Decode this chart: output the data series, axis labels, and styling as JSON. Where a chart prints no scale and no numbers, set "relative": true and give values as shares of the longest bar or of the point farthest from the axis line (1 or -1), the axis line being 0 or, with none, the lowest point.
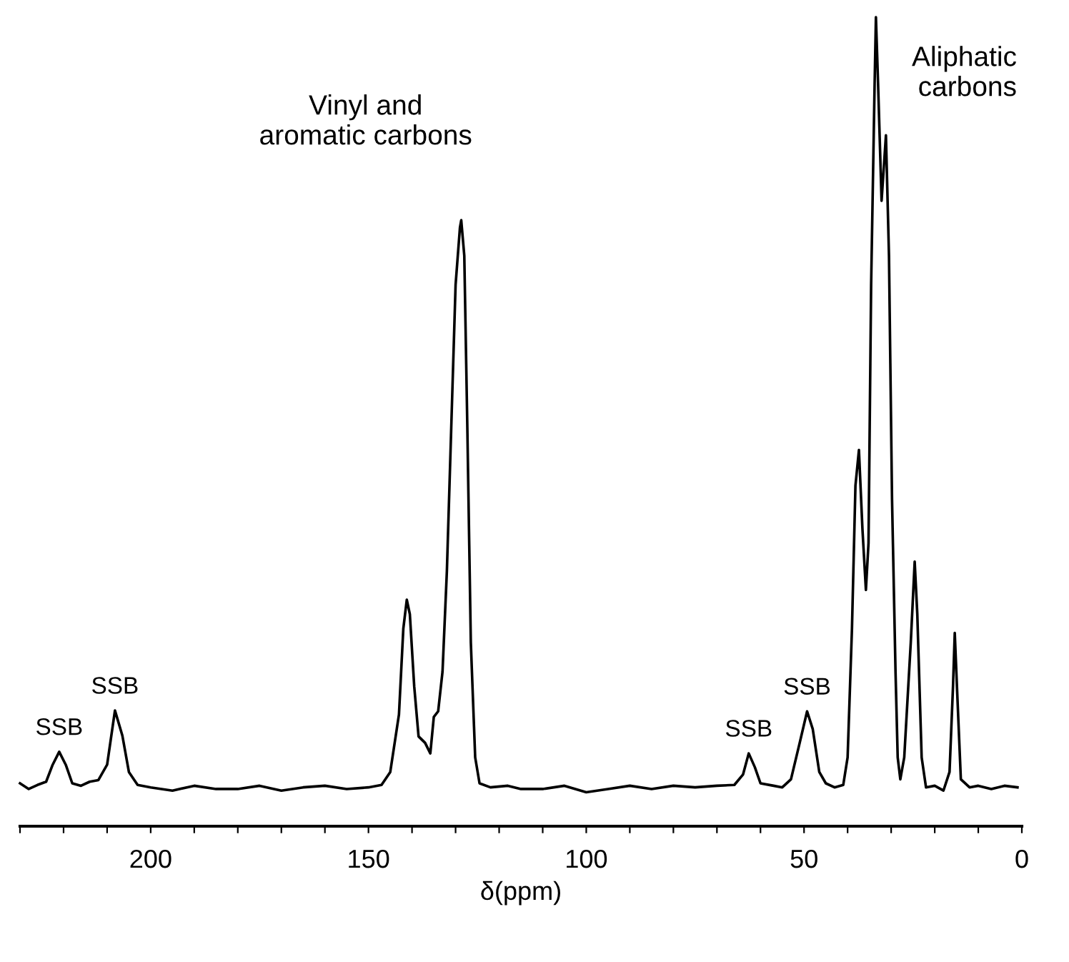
{
  "chart_data": {
    "type": "line",
    "relative": true,
    "xlabel": "δ(ppm)",
    "color": "#000000",
    "grid": false,
    "marker": "none",
    "line_style": "solid",
    "xlim": [
      230,
      0
    ],
    "xticks": [
      {
        "value": 230,
        "label": null
      },
      {
        "value": 220,
        "label": null
      },
      {
        "value": 210,
        "label": null
      },
      200,
      {
        "value": 190,
        "label": null
      },
      {
        "value": 180,
        "label": null
      },
      {
        "value": 170,
        "label": null
      },
      {
        "value": 160,
        "label": null
      },
      150,
      {
        "value": 140,
        "label": null
      },
      {
        "value": 130,
        "label": null
      },
      {
        "value": 120,
        "label": null
      },
      {
        "value": 110,
        "label": null
      },
      100,
      {
        "value": 90,
        "label": null
      },
      {
        "value": 80,
        "label": null
      },
      {
        "value": 70,
        "label": null
      },
      {
        "value": 60,
        "label": null
      },
      50,
      {
        "value": 40,
        "label": null
      },
      {
        "value": 30,
        "label": null
      },
      {
        "value": 20,
        "label": null
      },
      {
        "value": 10,
        "label": null
      },
      0
    ],
    "annotations": [
      "Vinyl and\naromatic carbons",
      "Aliphatic\ncarbons",
      {
        "text": "SSB",
        "x": 221,
        "y": 0.092
      },
      {
        "text": "SSB",
        "x": 208.2,
        "y": 0.143
      },
      {
        "text": "SSB",
        "x": 62.7,
        "y": 0.09
      },
      {
        "text": "SSB",
        "x": 49.3,
        "y": 0.142
      }
    ],
    "x": [
      230,
      228,
      226,
      224,
      222.5,
      221,
      219.5,
      218,
      216,
      214,
      212,
      210,
      208.2,
      206.5,
      205,
      203,
      200,
      195,
      190,
      185,
      180,
      175,
      170,
      165,
      160,
      155,
      150,
      147,
      145,
      143,
      142,
      141.2,
      140.5,
      139.5,
      138.5,
      137,
      135.8,
      135,
      134,
      133,
      132,
      131,
      130,
      129,
      128.7,
      128,
      127.3,
      126.5,
      125.5,
      124.5,
      122,
      118,
      115,
      110,
      105,
      100,
      95,
      90,
      85,
      80,
      75,
      70,
      66,
      64,
      62.7,
      61.3,
      60,
      57,
      55,
      53,
      51,
      49.3,
      48,
      46.5,
      45,
      43,
      41,
      40,
      39,
      38.2,
      37.4,
      36.6,
      35.8,
      35.2,
      34.6,
      33.8,
      33.5,
      33,
      32.2,
      31.2,
      30.5,
      29.8,
      29,
      28.5,
      27.9,
      27,
      25.5,
      24.6,
      24,
      23,
      22,
      20,
      18,
      16.6,
      15.8,
      15.4,
      14.9,
      14,
      12,
      10,
      7,
      4,
      1
    ],
    "values": [
      0.053,
      0.046,
      0.051,
      0.055,
      0.076,
      0.092,
      0.076,
      0.053,
      0.05,
      0.055,
      0.057,
      0.076,
      0.143,
      0.112,
      0.067,
      0.051,
      0.048,
      0.044,
      0.05,
      0.046,
      0.046,
      0.05,
      0.044,
      0.048,
      0.05,
      0.046,
      0.048,
      0.051,
      0.067,
      0.138,
      0.244,
      0.28,
      0.262,
      0.173,
      0.111,
      0.103,
      0.09,
      0.135,
      0.142,
      0.191,
      0.315,
      0.492,
      0.669,
      0.74,
      0.749,
      0.705,
      0.492,
      0.227,
      0.085,
      0.053,
      0.048,
      0.05,
      0.046,
      0.046,
      0.05,
      0.042,
      0.046,
      0.05,
      0.046,
      0.05,
      0.048,
      0.05,
      0.051,
      0.064,
      0.09,
      0.073,
      0.053,
      0.05,
      0.048,
      0.058,
      0.103,
      0.142,
      0.12,
      0.067,
      0.053,
      0.048,
      0.051,
      0.085,
      0.244,
      0.421,
      0.465,
      0.368,
      0.292,
      0.35,
      0.669,
      0.917,
      1.0,
      0.917,
      0.773,
      0.854,
      0.705,
      0.404,
      0.191,
      0.085,
      0.058,
      0.085,
      0.227,
      0.327,
      0.262,
      0.085,
      0.048,
      0.05,
      0.044,
      0.067,
      0.173,
      0.239,
      0.173,
      0.058,
      0.048,
      0.05,
      0.046,
      0.05,
      0.048
    ]
  }
}
